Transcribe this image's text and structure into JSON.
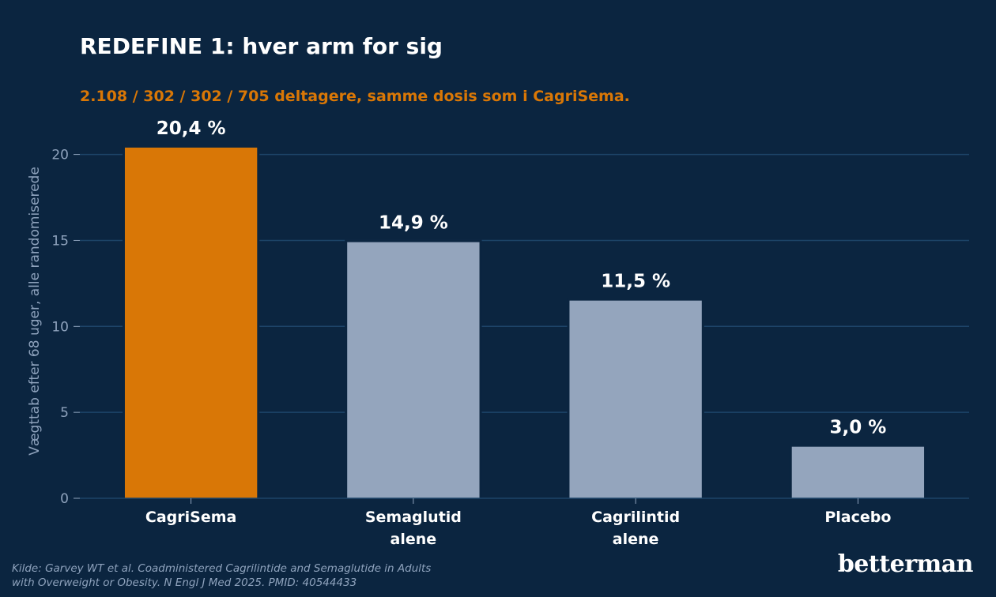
{
  "title": "REDEFINE 1: hver arm for sig",
  "subtitle": "2.108 / 302 / 302 / 705 deltagere, samme dosis som i CagriSema.",
  "source": {
    "line1": "Kilde: Garvey WT et al. Coadministered Cagrilintide and Semaglutide in Adults",
    "line2": "with Overweight or Obesity. N Engl J Med 2025. PMID: 40544433"
  },
  "brand": "betterman",
  "colors": {
    "background": "#0b2540",
    "highlight": "#d97706",
    "bar": "#94a5bd",
    "grid": "#1d4468",
    "axis_text": "#8fa3bd"
  },
  "chart_data": {
    "type": "bar",
    "categories": [
      [
        "CagriSema"
      ],
      [
        "Semaglutid",
        "alene"
      ],
      [
        "Cagrilintid",
        "alene"
      ],
      [
        "Placebo"
      ]
    ],
    "values": [
      20.4,
      14.9,
      11.5,
      3.0
    ],
    "value_labels": [
      "20,4 %",
      "14,9 %",
      "11,5 %",
      "3,0 %"
    ],
    "highlight_index": 0,
    "ylabel": "Vægttab efter 68 uger, alle randomiserede",
    "xlabel": "",
    "yticks": [
      0,
      5,
      10,
      15,
      20
    ],
    "ylim": [
      0,
      22.6
    ],
    "grid": true
  }
}
